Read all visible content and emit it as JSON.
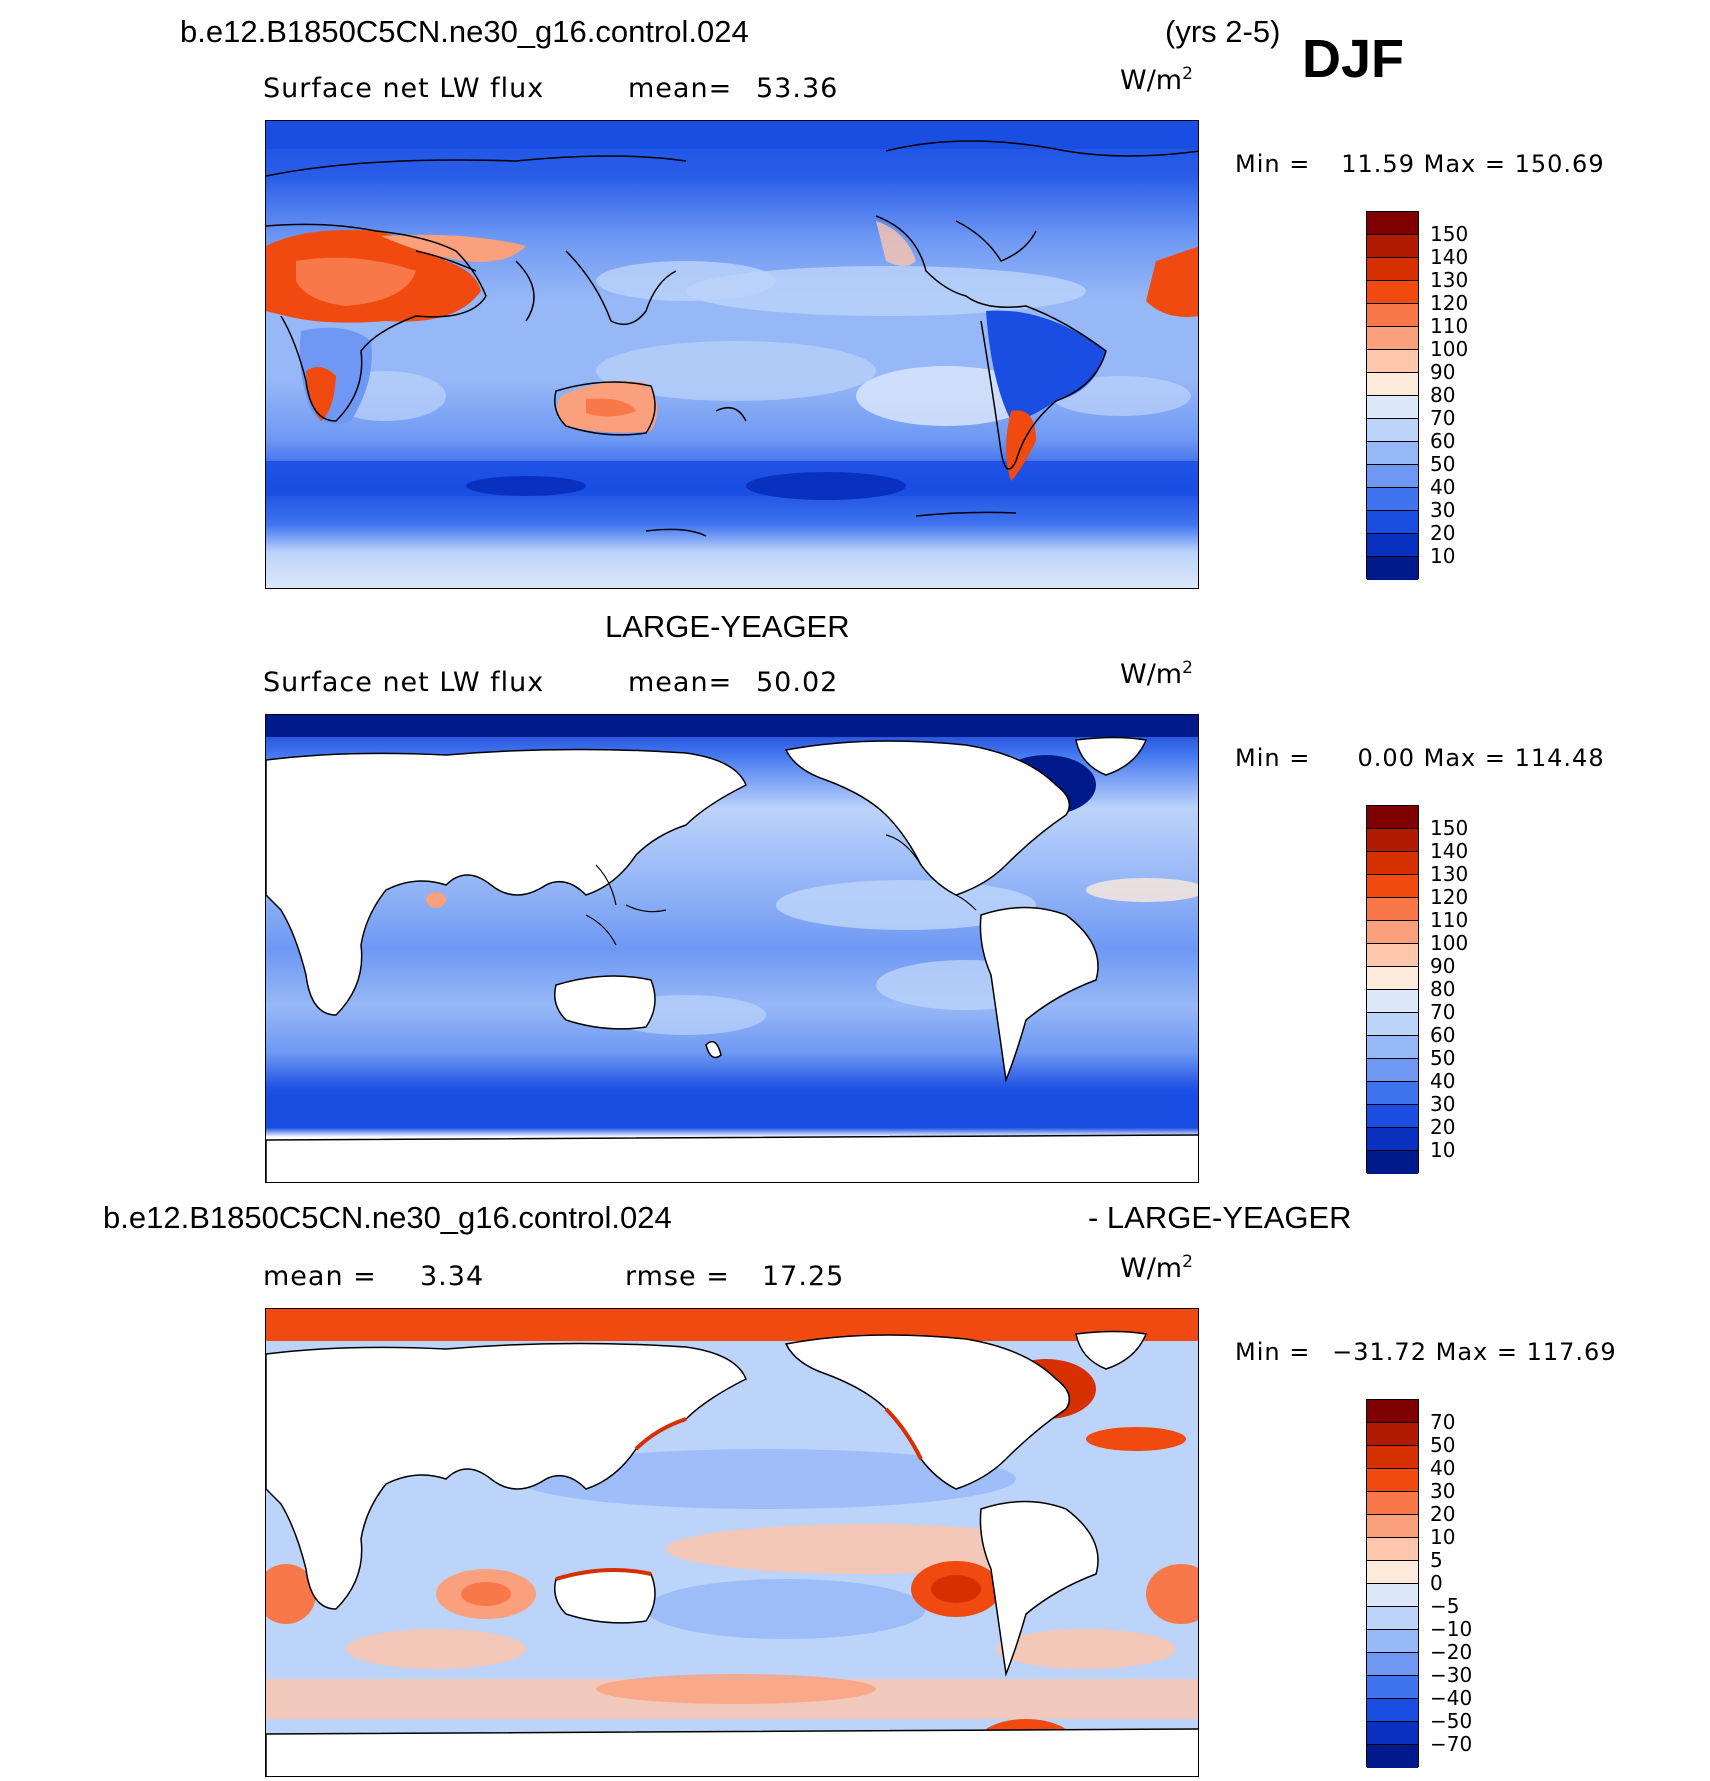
{
  "header": {
    "case_name": "b.e12.B1850C5CN.ne30_g16.control.024",
    "years": "(yrs 2-5)",
    "season": "DJF"
  },
  "panels": [
    {
      "id": "model",
      "title": "",
      "variable": "Surface net LW flux",
      "stat_label": "mean=",
      "stat_value": "53.36",
      "units_base": "W/m",
      "units_sup": "2",
      "min_label": "Min =",
      "min_value": "11.59",
      "max_label": "Max =",
      "max_value": "150.69",
      "colors": {
        "land_hot": "#e8643a",
        "ocean": "#7fa8f0",
        "polar": "#1a45d8"
      }
    },
    {
      "id": "obs",
      "title": "LARGE-YEAGER",
      "variable": "Surface net LW flux",
      "stat_label": "mean=",
      "stat_value": "50.02",
      "units_base": "W/m",
      "units_sup": "2",
      "min_label": "Min =",
      "min_value": "0.00",
      "max_label": "Max =",
      "max_value": "114.48"
    },
    {
      "id": "diff",
      "title_left": "b.e12.B1850C5CN.ne30_g16.control.024",
      "title_right": "- LARGE-YEAGER",
      "stat_label": "mean =",
      "stat_value": "3.34",
      "rmse_label": "rmse =",
      "rmse_value": "17.25",
      "units_base": "W/m",
      "units_sup": "2",
      "min_label": "Min =",
      "min_value": "−31.72",
      "max_label": "Max =",
      "max_value": "117.69"
    }
  ],
  "colorbars": {
    "flux": {
      "labels": [
        "150",
        "140",
        "130",
        "120",
        "110",
        "100",
        "90",
        "80",
        "70",
        "60",
        "50",
        "40",
        "30",
        "20",
        "10"
      ],
      "colors": [
        "#7f0000",
        "#b01a00",
        "#d63000",
        "#f04a10",
        "#f8784a",
        "#fba07c",
        "#fdc6ad",
        "#fdeadb",
        "#dde9fb",
        "#bcd3fa",
        "#97b8f7",
        "#6e98f3",
        "#4074ef",
        "#1a4ee3",
        "#0a30c0",
        "#001a8c"
      ]
    },
    "diff": {
      "labels": [
        "70",
        "50",
        "40",
        "30",
        "20",
        "10",
        "5",
        "0",
        "−5",
        "−10",
        "−20",
        "−30",
        "−40",
        "−50",
        "−70"
      ],
      "colors": [
        "#7f0000",
        "#b01a00",
        "#d63000",
        "#f04a10",
        "#f8784a",
        "#fba07c",
        "#fdc6ad",
        "#fdeadb",
        "#dde9fb",
        "#bcd3fa",
        "#97b8f7",
        "#6e98f3",
        "#4074ef",
        "#1a4ee3",
        "#0a30c0",
        "#001a8c"
      ]
    }
  }
}
